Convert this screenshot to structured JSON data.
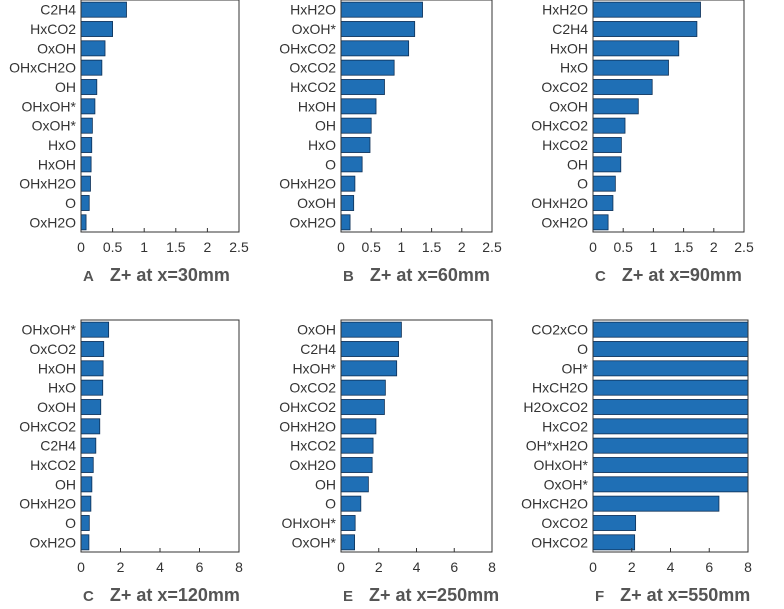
{
  "chart_data": [
    {
      "type": "bar",
      "orientation": "horizontal",
      "letter": "A",
      "title": "Z+ at x=30mm",
      "xlim": [
        0,
        2.5
      ],
      "xticks": [
        0,
        0.5,
        1,
        1.5,
        2,
        2.5
      ],
      "xtick_labels": [
        "0",
        "0.5",
        "1",
        "1.5",
        "2",
        "2.5"
      ],
      "categories": [
        "C2H4",
        "HxCO2",
        "OxOH",
        "OHxCH2O",
        "OH",
        "OHxOH*",
        "OxOH*",
        "HxO",
        "HxOH",
        "OHxH2O",
        "O",
        "OxH2O"
      ],
      "values": [
        0.72,
        0.5,
        0.38,
        0.33,
        0.25,
        0.22,
        0.18,
        0.17,
        0.16,
        0.15,
        0.13,
        0.08
      ]
    },
    {
      "type": "bar",
      "orientation": "horizontal",
      "letter": "B",
      "title": "Z+ at x=60mm",
      "xlim": [
        0,
        2.5
      ],
      "xticks": [
        0,
        0.5,
        1,
        1.5,
        2,
        2.5
      ],
      "xtick_labels": [
        "0",
        "0.5",
        "1",
        "1.5",
        "2",
        "2.5"
      ],
      "categories": [
        "HxH2O",
        "OxOH*",
        "OHxCO2",
        "OxCO2",
        "HxCO2",
        "HxOH",
        "OH",
        "HxO",
        "O",
        "OHxH2O",
        "OxOH",
        "OxH2O"
      ],
      "values": [
        1.35,
        1.22,
        1.12,
        0.88,
        0.72,
        0.58,
        0.5,
        0.48,
        0.35,
        0.23,
        0.21,
        0.15
      ]
    },
    {
      "type": "bar",
      "orientation": "horizontal",
      "letter": "C",
      "title": "Z+ at x=90mm",
      "xlim": [
        0,
        2.5
      ],
      "xticks": [
        0,
        0.5,
        1,
        1.5,
        2,
        2.5
      ],
      "xtick_labels": [
        "0",
        "0.5",
        "1",
        "1.5",
        "2",
        "2.5"
      ],
      "categories": [
        "HxH2O",
        "C2H4",
        "HxOH",
        "HxO",
        "OxCO2",
        "OxOH",
        "OHxCO2",
        "HxCO2",
        "OH",
        "O",
        "OHxH2O",
        "OxH2O"
      ],
      "values": [
        1.78,
        1.72,
        1.42,
        1.25,
        0.98,
        0.75,
        0.53,
        0.47,
        0.46,
        0.37,
        0.33,
        0.25
      ]
    },
    {
      "type": "bar",
      "orientation": "horizontal",
      "letter": "C",
      "title": "Z+ at x=120mm",
      "xlim": [
        0,
        8
      ],
      "xticks": [
        0,
        2,
        4,
        6,
        8
      ],
      "xtick_labels": [
        "0",
        "2",
        "4",
        "6",
        "8"
      ],
      "categories": [
        "OHxOH*",
        "OxCO2",
        "HxOH",
        "HxO",
        "OxOH",
        "OHxCO2",
        "C2H4",
        "HxCO2",
        "OH",
        "OHxH2O",
        "O",
        "OxH2O"
      ],
      "values": [
        1.4,
        1.15,
        1.12,
        1.1,
        1.0,
        0.95,
        0.75,
        0.62,
        0.55,
        0.5,
        0.42,
        0.4
      ]
    },
    {
      "type": "bar",
      "orientation": "horizontal",
      "letter": "E",
      "title": "Z+ at x=250mm",
      "xlim": [
        0,
        8
      ],
      "xticks": [
        0,
        2,
        4,
        6,
        8
      ],
      "xtick_labels": [
        "0",
        "2",
        "4",
        "6",
        "8"
      ],
      "categories": [
        "OxOH",
        "C2H4",
        "HxOH*",
        "OxCO2",
        "OHxCO2",
        "OHxH2O",
        "HxCO2",
        "OxH2O",
        "OH",
        "O",
        "OHxOH*",
        "OxOH*"
      ],
      "values": [
        3.2,
        3.05,
        2.95,
        2.35,
        2.3,
        1.85,
        1.7,
        1.65,
        1.45,
        1.05,
        0.75,
        0.72
      ]
    },
    {
      "type": "bar",
      "orientation": "horizontal",
      "letter": "F",
      "title": "Z+ at x=550mm",
      "xlim": [
        0,
        8
      ],
      "xticks": [
        0,
        2,
        4,
        6,
        8
      ],
      "xtick_labels": [
        "0",
        "2",
        "4",
        "6",
        "8"
      ],
      "categories": [
        "CO2xCO",
        "O",
        "OH*",
        "HxCH2O",
        "H2OxCO2",
        "HxCO2",
        "OH*xH2O",
        "OHxOH*",
        "OxOH*",
        "OHxCH2O",
        "OxCO2",
        "OHxCO2"
      ],
      "values": [
        8,
        8,
        8,
        8,
        8,
        8,
        8,
        8,
        8,
        6.5,
        2.2,
        2.15
      ]
    }
  ]
}
